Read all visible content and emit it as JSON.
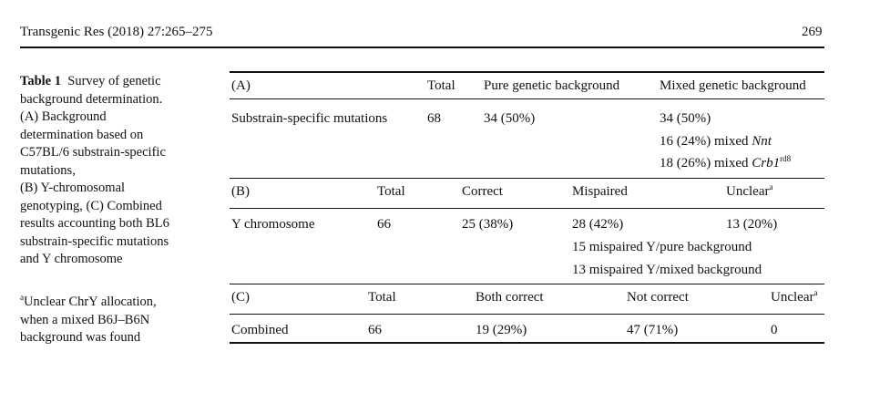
{
  "header": {
    "journal": "Transgenic Res (2018) 27:265–275",
    "page_number": "269"
  },
  "caption": {
    "label": "Table 1",
    "text": "Survey of genetic background determination. (A) Background determination based on C57BL/6 substrain-specific mutations, (B) Y-chromosomal genotyping, (C) Combined results accounting both BL6 substrain-specific mutations and Y chromosome",
    "lines": [
      "background determination.",
      "(A) Background",
      "determination based on",
      "C57BL/6 substrain-specific",
      "mutations,",
      "(B) Y-chromosomal",
      "genotyping, (C) Combined",
      "results accounting both BL6",
      "substrain-specific mutations",
      "and Y chromosome"
    ],
    "first_line_rest": "Survey of genetic"
  },
  "footnote": {
    "marker": "a",
    "lines": [
      "Unclear ChrY allocation,",
      "when a mixed B6J–B6N",
      "background was found"
    ]
  },
  "table": {
    "section_a": {
      "headers": [
        "(A)",
        "Total",
        "Pure genetic background",
        "Mixed genetic background"
      ],
      "row_label": "Substrain-specific mutations",
      "total": "68",
      "pure": "34 (50%)",
      "mixed": "34 (50%)",
      "mixed_nnt_prefix": "16 (24%) mixed ",
      "mixed_nnt_gene": "Nnt",
      "mixed_crb_prefix": "18 (26%) mixed ",
      "mixed_crb_gene": "Crb1",
      "mixed_crb_sup": "rd8"
    },
    "section_b": {
      "headers": [
        "(B)",
        "Total",
        "Correct",
        "Mispaired",
        "Unclear"
      ],
      "header_sup": "a",
      "row_label": "Y chromosome",
      "total": "66",
      "correct": "25 (38%)",
      "mispaired": "28 (42%)",
      "unclear": "13 (20%)",
      "mispaired_pure": "15 mispaired Y/pure background",
      "mispaired_mixed": "13 mispaired Y/mixed background"
    },
    "section_c": {
      "headers": [
        "(C)",
        "Total",
        "Both correct",
        "Not correct",
        "Unclear"
      ],
      "header_sup": "a",
      "row_label": "Combined",
      "total": "66",
      "both_correct": "19 (29%)",
      "not_correct": "47 (71%)",
      "unclear": "0"
    }
  }
}
